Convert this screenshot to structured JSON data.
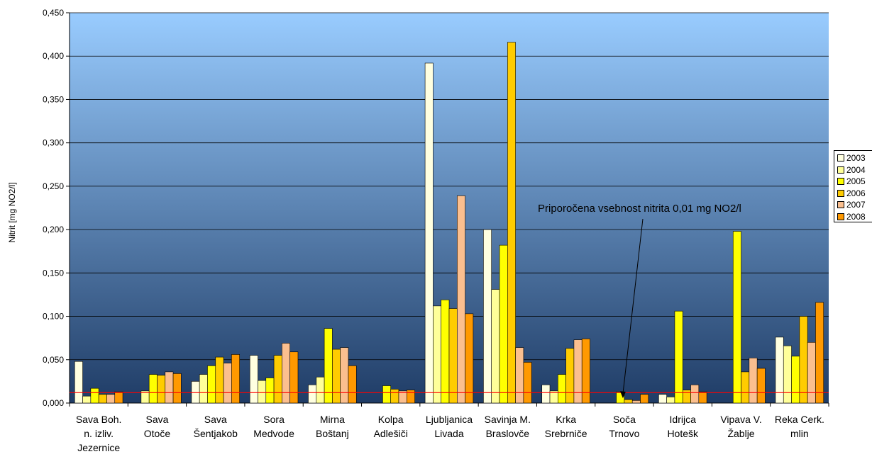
{
  "chart_data": {
    "type": "bar",
    "title": "",
    "ylabel": "Nitrit [mg NO2/l]",
    "xlabel": "",
    "ylim": [
      0,
      0.45
    ],
    "yticks": [
      "0,000",
      "0,050",
      "0,100",
      "0,150",
      "0,200",
      "0,250",
      "0,300",
      "0,350",
      "0,400",
      "0,450"
    ],
    "grid": true,
    "legend_position": "right",
    "categories": [
      [
        "Sava Boh.",
        "n. izliv.",
        "Jezernice"
      ],
      [
        "Sava",
        "Otoče"
      ],
      [
        "Sava",
        "Šentjakob"
      ],
      [
        "Sora",
        "Medvode"
      ],
      [
        "Mirna",
        "Boštanj"
      ],
      [
        "Kolpa",
        "Adlešiči"
      ],
      [
        "Ljubljanica",
        "Livada"
      ],
      [
        "Savinja M.",
        "Braslovče"
      ],
      [
        "Krka",
        "Srebrniče"
      ],
      [
        "Soča",
        "Trnovo"
      ],
      [
        "Idrijca",
        "Hotešk"
      ],
      [
        "Vipava V.",
        "Žablje"
      ],
      [
        "Reka Cerk.",
        "mlin"
      ]
    ],
    "series": [
      {
        "name": "2003",
        "color": "#ffffe0",
        "values": [
          0.048,
          null,
          0.025,
          0.055,
          0.021,
          null,
          0.392,
          0.2,
          0.021,
          null,
          0.01,
          null,
          0.076
        ]
      },
      {
        "name": "2004",
        "color": "#ffff99",
        "values": [
          0.008,
          0.014,
          0.033,
          0.026,
          0.03,
          null,
          0.112,
          0.131,
          0.014,
          null,
          0.007,
          null,
          0.066
        ]
      },
      {
        "name": "2005",
        "color": "#ffff00",
        "values": [
          0.017,
          0.033,
          0.043,
          0.029,
          0.086,
          0.02,
          0.119,
          0.182,
          0.033,
          0.013,
          0.106,
          0.198,
          0.054
        ]
      },
      {
        "name": "2006",
        "color": "#ffcc00",
        "values": [
          0.01,
          0.032,
          0.053,
          0.055,
          0.062,
          0.016,
          0.109,
          0.416,
          0.063,
          0.004,
          0.015,
          0.036,
          0.1
        ]
      },
      {
        "name": "2007",
        "color": "#fbbf8f",
        "values": [
          0.01,
          0.036,
          0.046,
          0.069,
          0.064,
          0.014,
          0.239,
          0.064,
          0.073,
          0.003,
          0.021,
          0.052,
          0.07
        ]
      },
      {
        "name": "2008",
        "color": "#ff9900",
        "values": [
          0.013,
          0.034,
          0.056,
          0.059,
          0.043,
          0.015,
          0.103,
          0.047,
          0.074,
          0.01,
          0.013,
          0.04,
          0.116
        ]
      }
    ],
    "reference_line": {
      "value": 0.012,
      "color": "#ff0000"
    },
    "annotation": {
      "text": "Priporočena vsebnost nitrita 0,01 mg NO2/l",
      "arrow_to": {
        "category_index": 9,
        "value": 0.004
      }
    },
    "background_gradient": [
      "#99ccff",
      "#1f3c66"
    ]
  }
}
